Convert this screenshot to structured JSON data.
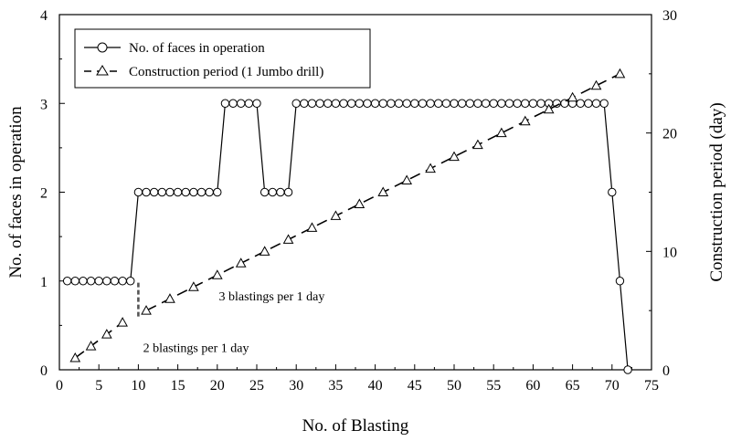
{
  "chart_data": {
    "type": "line",
    "xlabel": "No. of Blasting",
    "ylabel_left": "No. of faces in operation",
    "ylabel_right": "Construction period (day)",
    "xlim": [
      0,
      75
    ],
    "ylim_left": [
      0,
      4
    ],
    "ylim_right": [
      0,
      30
    ],
    "xticks": [
      "0",
      "5",
      "10",
      "15",
      "20",
      "25",
      "30",
      "35",
      "40",
      "45",
      "50",
      "55",
      "60",
      "65",
      "70",
      "75"
    ],
    "yticks_left": [
      "0",
      "1",
      "2",
      "3",
      "4"
    ],
    "yticks_right": [
      "0",
      "10",
      "20",
      "30"
    ],
    "grid": false,
    "legend_position": "top-left",
    "series": [
      {
        "name": "No. of faces in operation",
        "axis": "left",
        "marker": "circle",
        "line_style": "solid",
        "x": [
          1,
          2,
          3,
          4,
          5,
          6,
          7,
          8,
          9,
          10,
          11,
          12,
          13,
          14,
          15,
          16,
          17,
          18,
          19,
          20,
          21,
          22,
          23,
          24,
          25,
          26,
          27,
          28,
          29,
          30,
          31,
          32,
          33,
          34,
          35,
          36,
          37,
          38,
          39,
          40,
          41,
          42,
          43,
          44,
          45,
          46,
          47,
          48,
          49,
          50,
          51,
          52,
          53,
          54,
          55,
          56,
          57,
          58,
          59,
          60,
          61,
          62,
          63,
          64,
          65,
          66,
          67,
          68,
          69,
          70,
          71,
          72
        ],
        "y": [
          1,
          1,
          1,
          1,
          1,
          1,
          1,
          1,
          1,
          2,
          2,
          2,
          2,
          2,
          2,
          2,
          2,
          2,
          2,
          2,
          3,
          3,
          3,
          3,
          3,
          2,
          2,
          2,
          2,
          3,
          3,
          3,
          3,
          3,
          3,
          3,
          3,
          3,
          3,
          3,
          3,
          3,
          3,
          3,
          3,
          3,
          3,
          3,
          3,
          3,
          3,
          3,
          3,
          3,
          3,
          3,
          3,
          3,
          3,
          3,
          3,
          3,
          3,
          3,
          3,
          3,
          3,
          3,
          3,
          2,
          1,
          0
        ]
      },
      {
        "name": "Construction period (1 Jumbo drill)",
        "axis": "right",
        "marker": "triangle",
        "line_style": "dashed",
        "x": [
          2,
          4,
          6,
          8,
          11,
          14,
          17,
          20,
          23,
          26,
          29,
          32,
          35,
          38,
          41,
          44,
          47,
          50,
          53,
          56,
          59,
          62,
          65,
          68,
          71
        ],
        "y": [
          1,
          2,
          3,
          4,
          5,
          6,
          7,
          8,
          9,
          10,
          11,
          12,
          13,
          14,
          15,
          16,
          17,
          18,
          19,
          20,
          21,
          22,
          23,
          24,
          25
        ]
      }
    ],
    "vline": {
      "x": 10,
      "y_left": [
        0.6,
        1.0
      ]
    },
    "annotations": [
      {
        "text": "2 blastings per 1 day",
        "x": 10.6,
        "y_left": 0.2
      },
      {
        "text": "3 blastings per 1 day",
        "x": 20.2,
        "y_left": 0.78
      }
    ]
  }
}
